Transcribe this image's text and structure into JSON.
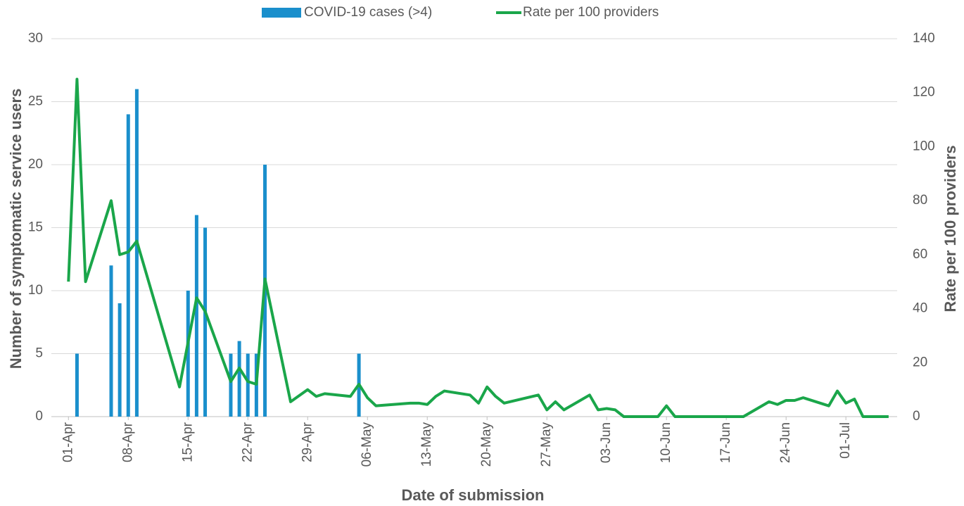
{
  "chart_data": {
    "type": "bar",
    "x_label": "Date of submission",
    "y_label": "Number of symptomatic service users",
    "y2_label": "Rate per 100 providers",
    "xlim": [
      "30-Mar",
      "07-Jul"
    ],
    "xticks": [
      "01-Apr",
      "08-Apr",
      "15-Apr",
      "22-Apr",
      "29-Apr",
      "06-May",
      "13-May",
      "20-May",
      "27-May",
      "03-Jun",
      "10-Jun",
      "17-Jun",
      "24-Jun",
      "01-Jul"
    ],
    "ylim": [
      0,
      30
    ],
    "yticks": [
      0,
      5,
      10,
      15,
      20,
      25,
      30
    ],
    "y2lim": [
      0,
      140
    ],
    "y2ticks": [
      0,
      20,
      40,
      60,
      80,
      100,
      120,
      140
    ],
    "grid": true,
    "legend": "top",
    "series": [
      {
        "name": "COVID-19 cases (>4)",
        "type": "bar",
        "color": "#1a8fcc",
        "x": [
          "02-Apr",
          "06-Apr",
          "07-Apr",
          "08-Apr",
          "09-Apr",
          "15-Apr",
          "16-Apr",
          "17-Apr",
          "20-Apr",
          "21-Apr",
          "22-Apr",
          "23-Apr",
          "24-Apr",
          "05-May"
        ],
        "values": [
          5,
          12,
          9,
          24,
          26,
          10,
          16,
          15,
          5,
          6,
          5,
          5,
          20,
          5
        ]
      },
      {
        "name": "Rate per 100 providers",
        "type": "line",
        "axis": "y2",
        "color": "#1aa64a",
        "x": [
          "01-Apr",
          "02-Apr",
          "03-Apr",
          "06-Apr",
          "07-Apr",
          "08-Apr",
          "09-Apr",
          "14-Apr",
          "16-Apr",
          "17-Apr",
          "20-Apr",
          "21-Apr",
          "22-Apr",
          "23-Apr",
          "24-Apr",
          "27-Apr",
          "29-Apr",
          "30-Apr",
          "01-May",
          "04-May",
          "05-May",
          "06-May",
          "07-May",
          "11-May",
          "12-May",
          "13-May",
          "14-May",
          "15-May",
          "18-May",
          "19-May",
          "20-May",
          "21-May",
          "22-May",
          "26-May",
          "27-May",
          "28-May",
          "29-May",
          "01-Jun",
          "02-Jun",
          "03-Jun",
          "04-Jun",
          "05-Jun",
          "09-Jun",
          "10-Jun",
          "11-Jun",
          "19-Jun",
          "22-Jun",
          "23-Jun",
          "24-Jun",
          "25-Jun",
          "26-Jun",
          "29-Jun",
          "30-Jun",
          "01-Jul",
          "02-Jul",
          "03-Jul",
          "06-Jul"
        ],
        "values": [
          50,
          125,
          50,
          80,
          60,
          61,
          65,
          11,
          44,
          39,
          13,
          18,
          13,
          12,
          51,
          5.5,
          10,
          7.5,
          8.5,
          7.5,
          12,
          7,
          4,
          5,
          5,
          4.5,
          7.5,
          9.5,
          8,
          5,
          11,
          7.5,
          5,
          8,
          2.5,
          5.5,
          2.5,
          8,
          2.5,
          3,
          2.5,
          0,
          0,
          4,
          0,
          0,
          5.5,
          4.5,
          6,
          6,
          7,
          4,
          9.5,
          5,
          6.5,
          0,
          0
        ]
      }
    ]
  }
}
